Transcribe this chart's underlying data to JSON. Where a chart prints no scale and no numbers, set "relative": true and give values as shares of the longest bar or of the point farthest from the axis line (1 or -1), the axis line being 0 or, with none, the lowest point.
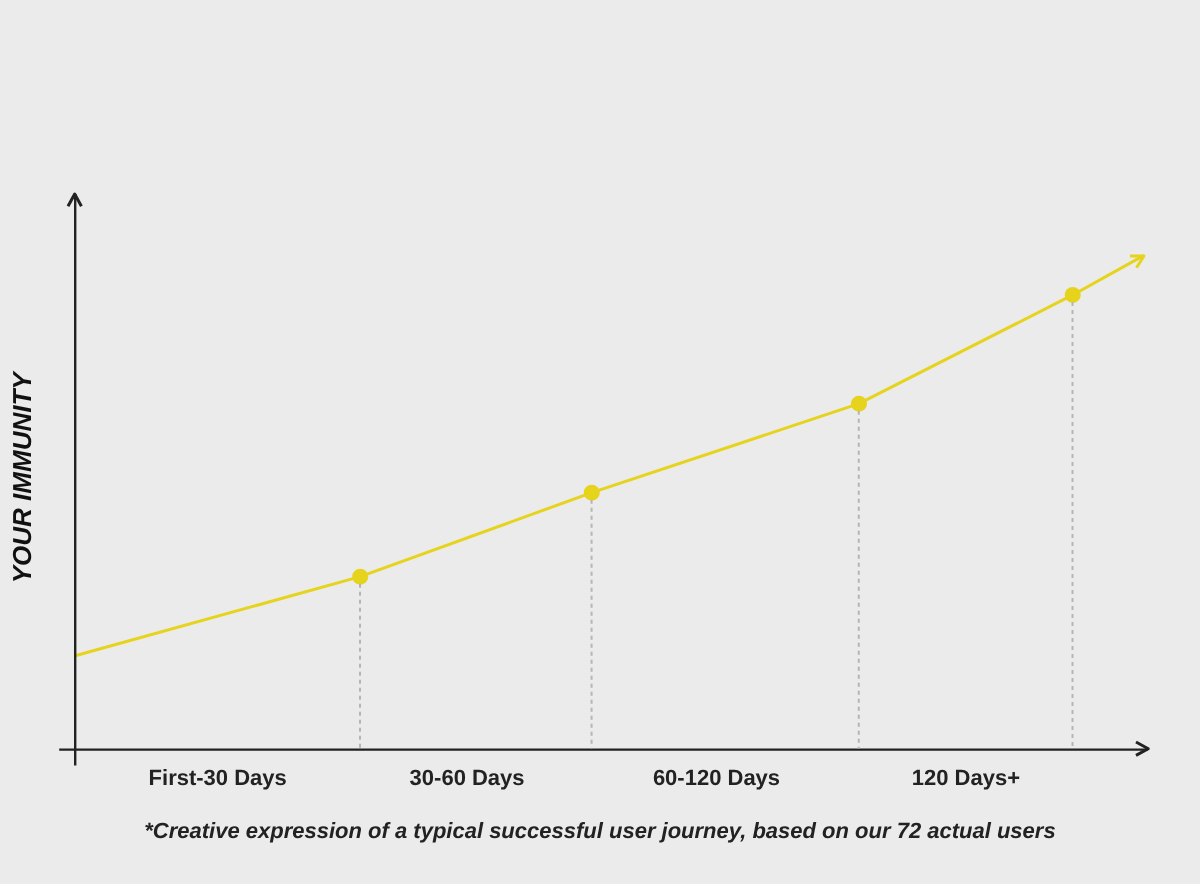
{
  "chart_data": {
    "type": "line",
    "relative": true,
    "ylabel": "YOUR IMMUNITY",
    "categories": [
      null,
      null,
      null,
      null,
      null,
      null,
      null,
      null,
      "First-30 Days",
      null,
      null,
      null,
      null,
      null,
      null,
      null,
      null,
      null,
      null,
      null,
      null,
      null,
      "30-60 Days",
      null,
      null,
      null,
      null,
      null,
      null,
      null,
      null,
      null,
      null,
      null,
      null,
      null,
      "60-120 Days",
      null,
      null,
      null,
      null,
      null,
      null,
      null,
      null,
      null,
      null,
      null,
      null,
      null,
      "120 Days+",
      null,
      null,
      null,
      null,
      null,
      null,
      null,
      null,
      null,
      null
    ],
    "series": [
      {
        "color": "#e6d31c",
        "values": [
          0.19,
          null,
          null,
          null,
          null,
          null,
          null,
          null,
          null,
          null,
          null,
          null,
          null,
          null,
          null,
          null,
          0.35,
          null,
          null,
          null,
          null,
          null,
          null,
          null,
          null,
          null,
          null,
          null,
          null,
          0.52,
          null,
          null,
          null,
          null,
          null,
          null,
          null,
          null,
          null,
          null,
          null,
          null,
          null,
          null,
          0.7,
          null,
          null,
          null,
          null,
          null,
          null,
          null,
          null,
          null,
          null,
          null,
          0.92,
          null,
          null,
          null,
          1
        ]
      }
    ],
    "marker": "circle",
    "grid": false,
    "legend": false,
    "annotations": [
      "*Creative expression of a typical successful user journey, based on our 72 actual users"
    ]
  }
}
